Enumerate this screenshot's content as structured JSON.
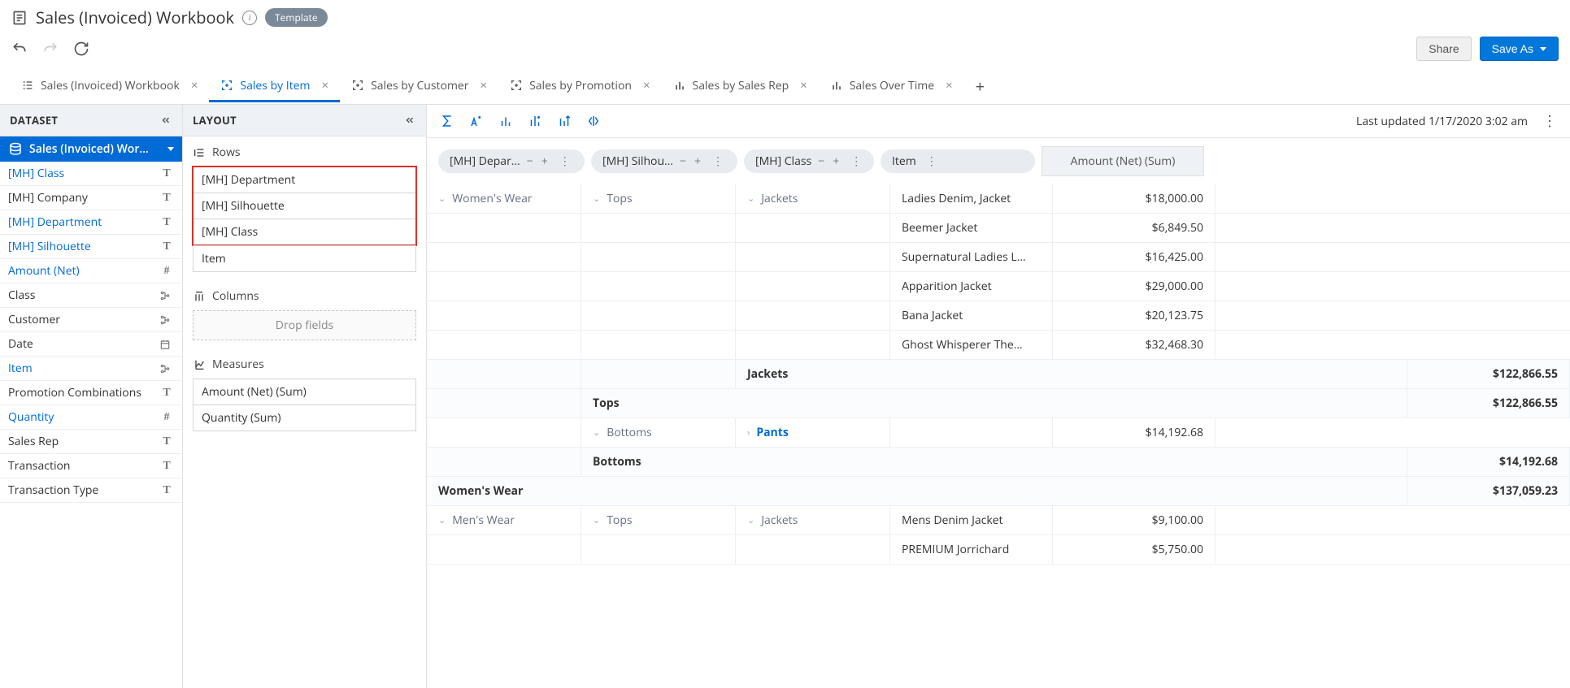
{
  "title": "Sales (Invoiced) Workbook",
  "template_badge": "Template",
  "buttons": {
    "share": "Share",
    "save_as": "Save As"
  },
  "tabs": [
    {
      "icon": "list",
      "label": "Sales (Invoiced) Workbook",
      "active": false
    },
    {
      "icon": "pivot",
      "label": "Sales by Item",
      "active": true
    },
    {
      "icon": "pivot",
      "label": "Sales by Customer",
      "active": false
    },
    {
      "icon": "pivot",
      "label": "Sales by Promotion",
      "active": false
    },
    {
      "icon": "chart",
      "label": "Sales by Sales Rep",
      "active": false
    },
    {
      "icon": "chart",
      "label": "Sales Over Time",
      "active": false
    }
  ],
  "dataset_panel": {
    "header": "DATASET",
    "selector": "Sales (Invoiced) Wor…",
    "fields": [
      {
        "name": "[MH] Class",
        "type": "T",
        "link": true
      },
      {
        "name": "[MH] Company",
        "type": "T",
        "link": false
      },
      {
        "name": "[MH] Department",
        "type": "T",
        "link": true
      },
      {
        "name": "[MH] Silhouette",
        "type": "T",
        "link": true
      },
      {
        "name": "Amount (Net)",
        "type": "#",
        "link": true
      },
      {
        "name": "Class",
        "type": "hier",
        "link": false
      },
      {
        "name": "Customer",
        "type": "hier",
        "link": false
      },
      {
        "name": "Date",
        "type": "date",
        "link": false
      },
      {
        "name": "Item",
        "type": "hier",
        "link": true
      },
      {
        "name": "Promotion Combinations",
        "type": "T",
        "link": false
      },
      {
        "name": "Quantity",
        "type": "#",
        "link": true
      },
      {
        "name": "Sales Rep",
        "type": "T",
        "link": false
      },
      {
        "name": "Transaction",
        "type": "T",
        "link": false
      },
      {
        "name": "Transaction Type",
        "type": "T",
        "link": false
      }
    ]
  },
  "layout_panel": {
    "header": "LAYOUT",
    "rows_label": "Rows",
    "rows": [
      "[MH] Department",
      "[MH] Silhouette",
      "[MH] Class",
      "Item"
    ],
    "highlighted_rows": [
      0,
      1,
      2
    ],
    "columns_label": "Columns",
    "columns_placeholder": "Drop fields",
    "measures_label": "Measures",
    "measures": [
      "Amount (Net) (Sum)",
      "Quantity (Sum)"
    ]
  },
  "toolbar": {
    "last_updated_label": "Last updated",
    "last_updated_value": "1/17/2020 3:02 am"
  },
  "pivot": {
    "col_headers": {
      "dept": "[MH] Depar…",
      "sil": "[MH] Silhou…",
      "cls": "[MH] Class",
      "item": "Item",
      "amt": "Amount (Net) (Sum)"
    },
    "rows": [
      {
        "dept": "Women's Wear",
        "sil": "Tops",
        "cls": "Jackets",
        "item": "Ladies Denim, Jacket",
        "amt": "$18,000.00",
        "first": true
      },
      {
        "item": "Beemer Jacket",
        "amt": "$6,849.50"
      },
      {
        "item": "Supernatural Ladies L…",
        "amt": "$16,425.00"
      },
      {
        "item": "Apparition Jacket",
        "amt": "$29,000.00"
      },
      {
        "item": "Bana Jacket",
        "amt": "$20,123.75"
      },
      {
        "item": "Ghost Whisperer The…",
        "amt": "$32,468.30"
      },
      {
        "subtotal": "class",
        "label": "Jackets",
        "amt": "$122,866.55"
      },
      {
        "subtotal": "sil",
        "label": "Tops",
        "amt": "$122,866.55"
      },
      {
        "sil": "Bottoms",
        "cls": "Pants",
        "cls_collapsed": true,
        "amt": "$14,192.68"
      },
      {
        "subtotal": "sil",
        "label": "Bottoms",
        "amt": "$14,192.68"
      },
      {
        "subtotal": "dept",
        "label": "Women's Wear",
        "amt": "$137,059.23"
      },
      {
        "dept": "Men's Wear",
        "sil": "Tops",
        "cls": "Jackets",
        "item": "Mens Denim Jacket",
        "amt": "$9,100.00",
        "first": true
      },
      {
        "item": "PREMIUM Jorrichard",
        "amt": "$5,750.00"
      }
    ]
  }
}
